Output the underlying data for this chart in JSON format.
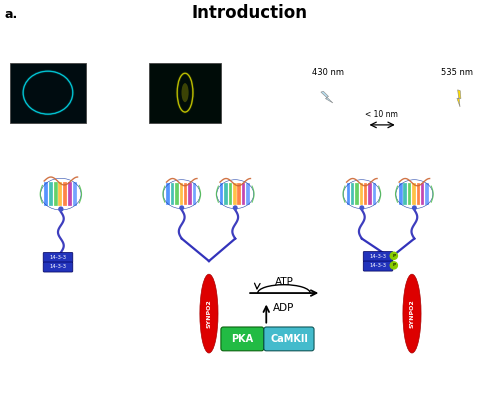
{
  "title": "Introduction",
  "title_fontsize": 12,
  "title_fontweight": "bold",
  "bg_color": "#ffffff",
  "label_430": "430 nm",
  "label_535": "535 nm",
  "label_distance": "< 10 nm",
  "label_atp": "ATP",
  "label_adp": "ADP",
  "label_pka": "PKA",
  "label_camkii": "CaMKII",
  "label_synpo2": "SYNPO2",
  "label_1433": "14-3-3",
  "pka_color": "#22bb44",
  "camkii_color": "#44bbcc",
  "synpo2_color": "#dd0000",
  "label_1433_color": "#2233bb",
  "phospho_color": "#88cc00",
  "arrow_color": "#111111"
}
